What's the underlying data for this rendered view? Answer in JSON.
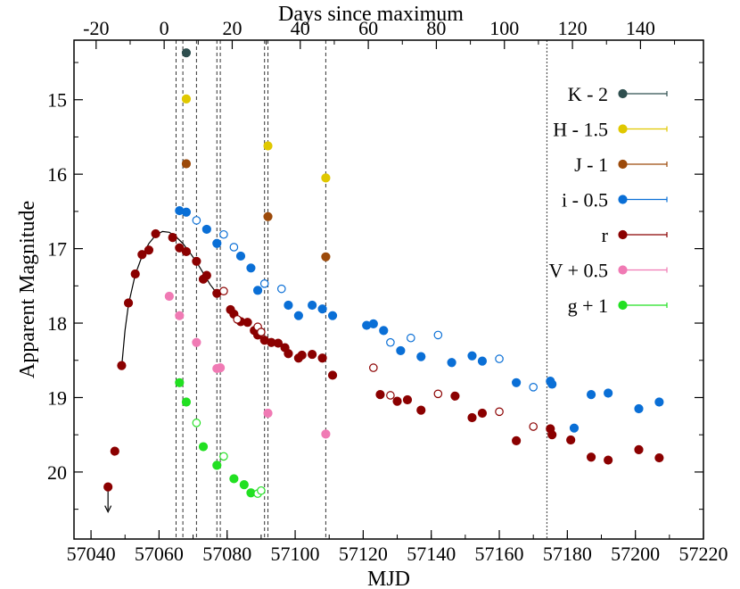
{
  "chart_data": {
    "type": "scatter",
    "xlabel": "MJD",
    "x2label": "Days since maximum",
    "ylabel": "Apparent Magnitude",
    "xlim": [
      57035,
      57220
    ],
    "ylim": [
      20.9,
      14.2
    ],
    "x_ticks": [
      "57040",
      "57060",
      "57080",
      "57100",
      "57120",
      "57140",
      "57160",
      "57180",
      "57200",
      "57220"
    ],
    "x2_ticks": [
      "-20",
      "0",
      "20",
      "40",
      "60",
      "80",
      "100",
      "120",
      "140"
    ],
    "y_ticks": [
      "15",
      "16",
      "17",
      "18",
      "19",
      "20"
    ],
    "t_max_mjd": 57061.5,
    "legend_position": "top-right",
    "vlines": {
      "dashed": [
        57065,
        57067,
        57071,
        57077,
        57078,
        57091,
        57092,
        57109
      ],
      "dotted": [
        57174
      ]
    },
    "upper_limit": {
      "x": 57045,
      "y": 20.2,
      "color": "#8b0000"
    },
    "series": [
      {
        "name": "K - 2",
        "color": "#2f4f4f",
        "filled": [
          {
            "x": 57068,
            "y": 14.37
          }
        ]
      },
      {
        "name": "H - 1.5",
        "color": "#e0c800",
        "filled": [
          {
            "x": 57068,
            "y": 14.99
          },
          {
            "x": 57092,
            "y": 15.62
          },
          {
            "x": 57109,
            "y": 16.05
          }
        ]
      },
      {
        "name": "J - 1",
        "color": "#9c4a0a",
        "filled": [
          {
            "x": 57068,
            "y": 15.86
          },
          {
            "x": 57092,
            "y": 16.57
          },
          {
            "x": 57109,
            "y": 17.11
          }
        ]
      },
      {
        "name": "i - 0.5",
        "color": "#0a6fd6",
        "filled": [
          {
            "x": 57066,
            "y": 16.49
          },
          {
            "x": 57068,
            "y": 16.51
          },
          {
            "x": 57074,
            "y": 16.74
          },
          {
            "x": 57077,
            "y": 16.93
          },
          {
            "x": 57084,
            "y": 17.1
          },
          {
            "x": 57087,
            "y": 17.26
          },
          {
            "x": 57089,
            "y": 17.56
          },
          {
            "x": 57098,
            "y": 17.76
          },
          {
            "x": 57101,
            "y": 17.9
          },
          {
            "x": 57105,
            "y": 17.76
          },
          {
            "x": 57108,
            "y": 17.81
          },
          {
            "x": 57111,
            "y": 17.9
          },
          {
            "x": 57121,
            "y": 18.03
          },
          {
            "x": 57123,
            "y": 18.01
          },
          {
            "x": 57126,
            "y": 18.1
          },
          {
            "x": 57131,
            "y": 18.37
          },
          {
            "x": 57137,
            "y": 18.45
          },
          {
            "x": 57146,
            "y": 18.53
          },
          {
            "x": 57152,
            "y": 18.44
          },
          {
            "x": 57155,
            "y": 18.51
          },
          {
            "x": 57165,
            "y": 18.8
          },
          {
            "x": 57175,
            "y": 18.78
          },
          {
            "x": 57175.5,
            "y": 18.82
          },
          {
            "x": 57182,
            "y": 19.41
          },
          {
            "x": 57187,
            "y": 18.96
          },
          {
            "x": 57192,
            "y": 18.94
          },
          {
            "x": 57201,
            "y": 19.15
          },
          {
            "x": 57207,
            "y": 19.06
          }
        ],
        "open": [
          {
            "x": 57071,
            "y": 16.62
          },
          {
            "x": 57079,
            "y": 16.81
          },
          {
            "x": 57082,
            "y": 16.98
          },
          {
            "x": 57091,
            "y": 17.47
          },
          {
            "x": 57096,
            "y": 17.54
          },
          {
            "x": 57128,
            "y": 18.26
          },
          {
            "x": 57134,
            "y": 18.2
          },
          {
            "x": 57142,
            "y": 18.16
          },
          {
            "x": 57160,
            "y": 18.48
          },
          {
            "x": 57170,
            "y": 18.86
          }
        ]
      },
      {
        "name": "r",
        "color": "#8b0000",
        "filled": [
          {
            "x": 57047,
            "y": 19.72
          },
          {
            "x": 57049,
            "y": 18.57
          },
          {
            "x": 57051,
            "y": 17.73
          },
          {
            "x": 57053,
            "y": 17.34
          },
          {
            "x": 57055,
            "y": 17.08
          },
          {
            "x": 57057,
            "y": 17.02
          },
          {
            "x": 57059,
            "y": 16.8
          },
          {
            "x": 57064,
            "y": 16.85
          },
          {
            "x": 57066,
            "y": 16.99
          },
          {
            "x": 57068,
            "y": 17.04
          },
          {
            "x": 57071,
            "y": 17.17
          },
          {
            "x": 57073,
            "y": 17.41
          },
          {
            "x": 57074,
            "y": 17.36
          },
          {
            "x": 57077,
            "y": 17.6
          },
          {
            "x": 57081,
            "y": 17.82
          },
          {
            "x": 57082,
            "y": 17.88
          },
          {
            "x": 57084,
            "y": 17.98
          },
          {
            "x": 57086,
            "y": 17.99
          },
          {
            "x": 57088,
            "y": 18.1
          },
          {
            "x": 57089,
            "y": 18.16
          },
          {
            "x": 57091,
            "y": 18.23
          },
          {
            "x": 57093,
            "y": 18.26
          },
          {
            "x": 57095,
            "y": 18.27
          },
          {
            "x": 57097,
            "y": 18.33
          },
          {
            "x": 57098,
            "y": 18.41
          },
          {
            "x": 57101,
            "y": 18.47
          },
          {
            "x": 57102,
            "y": 18.43
          },
          {
            "x": 57105,
            "y": 18.42
          },
          {
            "x": 57108,
            "y": 18.47
          },
          {
            "x": 57111,
            "y": 18.7
          },
          {
            "x": 57125,
            "y": 18.96
          },
          {
            "x": 57130,
            "y": 19.05
          },
          {
            "x": 57133,
            "y": 19.03
          },
          {
            "x": 57137,
            "y": 19.17
          },
          {
            "x": 57147,
            "y": 18.98
          },
          {
            "x": 57152,
            "y": 19.27
          },
          {
            "x": 57155,
            "y": 19.21
          },
          {
            "x": 57165,
            "y": 19.58
          },
          {
            "x": 57175,
            "y": 19.42
          },
          {
            "x": 57175.5,
            "y": 19.5
          },
          {
            "x": 57181,
            "y": 19.57
          },
          {
            "x": 57187,
            "y": 19.8
          },
          {
            "x": 57192,
            "y": 19.84
          },
          {
            "x": 57201,
            "y": 19.7
          },
          {
            "x": 57207,
            "y": 19.81
          }
        ],
        "open": [
          {
            "x": 57079,
            "y": 17.57
          },
          {
            "x": 57083,
            "y": 17.95
          },
          {
            "x": 57089,
            "y": 18.05
          },
          {
            "x": 57090,
            "y": 18.12
          },
          {
            "x": 57123,
            "y": 18.6
          },
          {
            "x": 57128,
            "y": 18.97
          },
          {
            "x": 57142,
            "y": 18.95
          },
          {
            "x": 57160,
            "y": 19.19
          },
          {
            "x": 57170,
            "y": 19.39
          }
        ]
      },
      {
        "name": "V + 0.5",
        "color": "#f07ab4",
        "filled": [
          {
            "x": 57063,
            "y": 17.64
          },
          {
            "x": 57066,
            "y": 17.9
          },
          {
            "x": 57071,
            "y": 18.26
          },
          {
            "x": 57077,
            "y": 18.61
          },
          {
            "x": 57078,
            "y": 18.6
          },
          {
            "x": 57092,
            "y": 19.21
          },
          {
            "x": 57109,
            "y": 19.49
          }
        ]
      },
      {
        "name": "g + 1",
        "color": "#22e022",
        "filled": [
          {
            "x": 57066,
            "y": 18.8
          },
          {
            "x": 57068,
            "y": 19.06
          },
          {
            "x": 57073,
            "y": 19.66
          },
          {
            "x": 57077,
            "y": 19.91
          },
          {
            "x": 57082,
            "y": 20.09
          },
          {
            "x": 57085,
            "y": 20.17
          },
          {
            "x": 57087,
            "y": 20.28
          }
        ],
        "open": [
          {
            "x": 57071,
            "y": 19.34
          },
          {
            "x": 57079,
            "y": 19.79
          },
          {
            "x": 57089,
            "y": 20.29
          },
          {
            "x": 57090,
            "y": 20.25
          }
        ]
      }
    ],
    "fit_curve": {
      "color": "#000000",
      "points": [
        {
          "x": 57049,
          "y": 18.6
        },
        {
          "x": 57050,
          "y": 18.1
        },
        {
          "x": 57051,
          "y": 17.75
        },
        {
          "x": 57053,
          "y": 17.35
        },
        {
          "x": 57055,
          "y": 17.1
        },
        {
          "x": 57057,
          "y": 16.93
        },
        {
          "x": 57059,
          "y": 16.82
        },
        {
          "x": 57061,
          "y": 16.77
        },
        {
          "x": 57063,
          "y": 16.78
        },
        {
          "x": 57065,
          "y": 16.84
        },
        {
          "x": 57067,
          "y": 16.93
        },
        {
          "x": 57069,
          "y": 17.05
        },
        {
          "x": 57071,
          "y": 17.18
        },
        {
          "x": 57073,
          "y": 17.33
        },
        {
          "x": 57075,
          "y": 17.48
        },
        {
          "x": 57077,
          "y": 17.6
        }
      ]
    }
  }
}
